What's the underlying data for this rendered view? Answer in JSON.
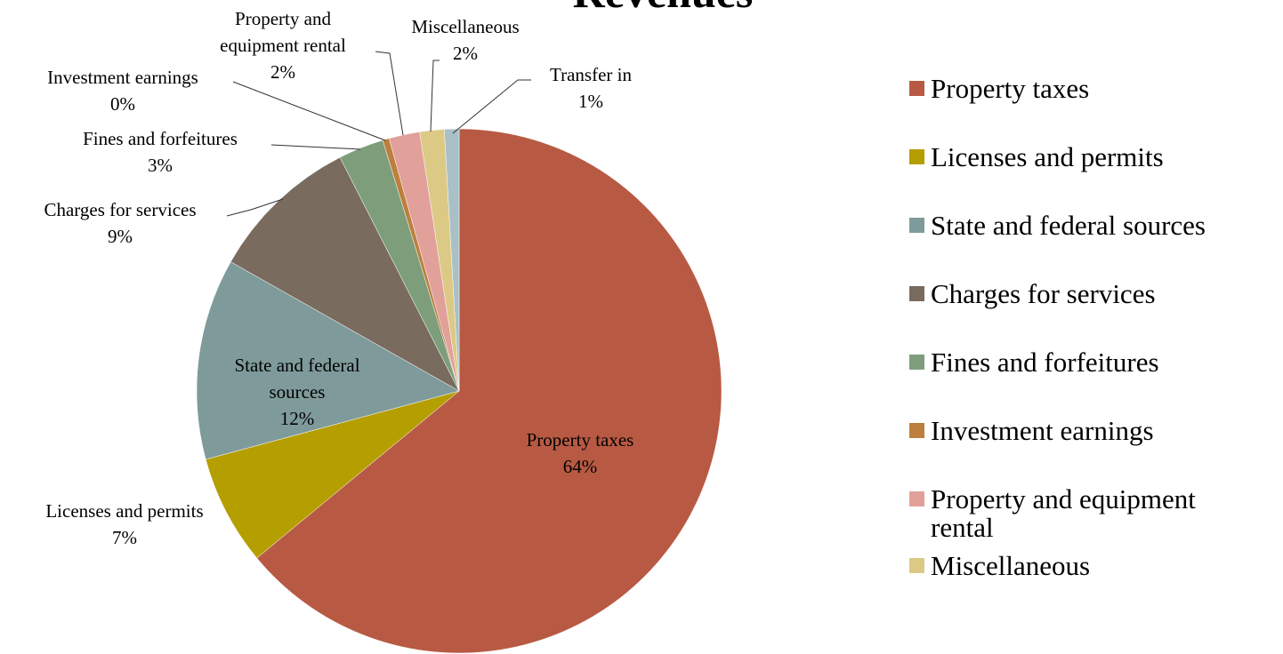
{
  "chart_data": {
    "type": "pie",
    "title": "Revenues",
    "categories": [
      "Property taxes",
      "Licenses and permits",
      "State and federal sources",
      "Charges for services",
      "Fines and forfeitures",
      "Investment earnings",
      "Property and equipment rental",
      "Miscellaneous",
      "Transfer in"
    ],
    "values": [
      64,
      6.8,
      12.4,
      9.3,
      2.8,
      0.4,
      1.9,
      1.5,
      0.9
    ],
    "value_labels": [
      "64%",
      "7%",
      "12%",
      "9%",
      "3%",
      "0%",
      "2%",
      "2%",
      "1%"
    ],
    "colors": [
      "#b85a43",
      "#b59e00",
      "#7f9a9a",
      "#7a6b5f",
      "#7e9e7b",
      "#bc7f3d",
      "#e2a09a",
      "#dcc985",
      "#a9c0c6"
    ],
    "legend": "right"
  }
}
